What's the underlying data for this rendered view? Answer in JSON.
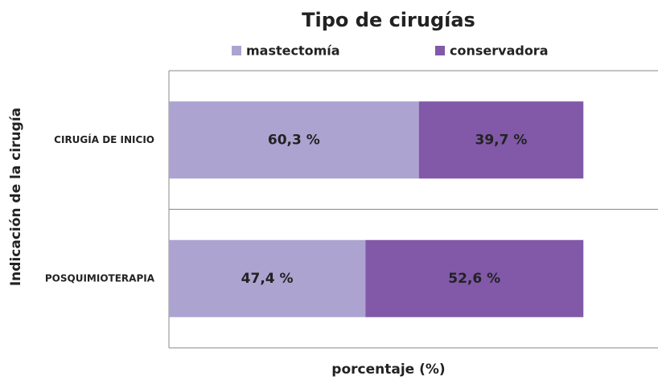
{
  "chart_data": {
    "type": "stacked-barh",
    "title": "Tipo de cirugías",
    "categories": [
      "CIRUGÍA DE INICIO",
      "POSQUIMIOTERAPIA"
    ],
    "series": [
      {
        "name": "mastectomía",
        "color": "#ada3d1",
        "values": [
          60.3,
          47.4
        ],
        "value_labels": [
          "60,3 %",
          "47,4 %"
        ]
      },
      {
        "name": "conservadora",
        "color": "#8159a8",
        "values": [
          39.7,
          52.6
        ],
        "value_labels": [
          "39,7 %",
          "52,6 %"
        ]
      }
    ],
    "xlim": [
      0,
      118
    ],
    "xlabel": "porcentaje (%)",
    "ylabel": "Indicación de la cirugía",
    "legend": "top"
  }
}
